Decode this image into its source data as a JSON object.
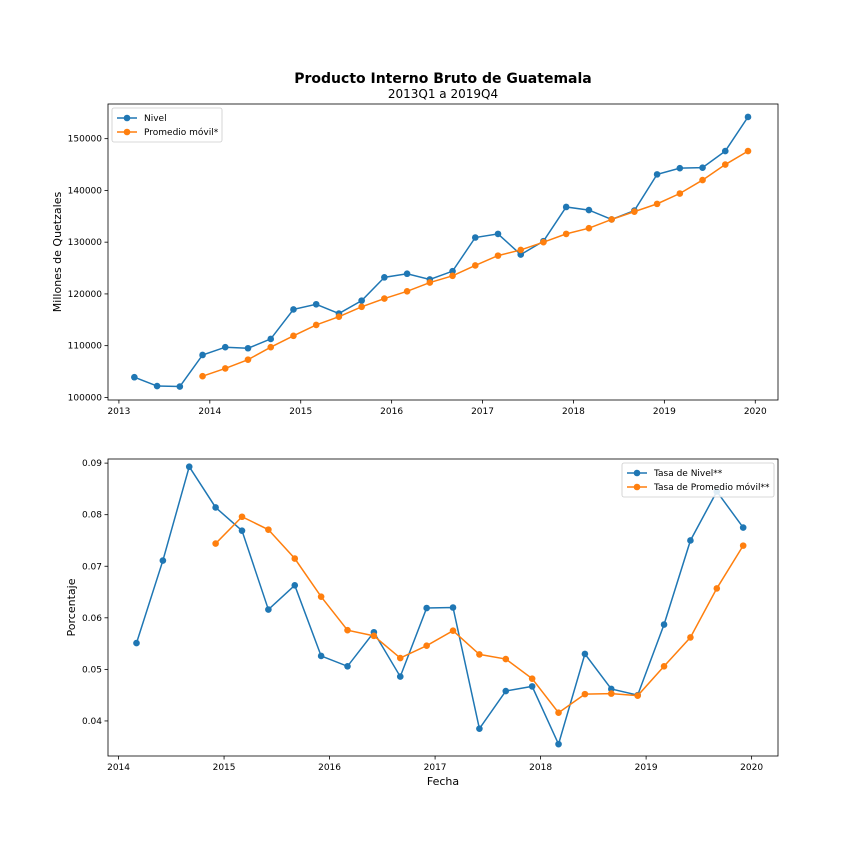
{
  "figure": {
    "title": "Producto Interno Bruto de Guatemala",
    "subtitle": "2013Q1 a 2019Q4"
  },
  "colors": {
    "nivel": "#1f77b4",
    "promedio": "#ff7f0e"
  },
  "chart_data": [
    {
      "type": "line",
      "xlabel": "",
      "ylabel": "Millones de Quetzales",
      "xlim": [
        2012.88,
        2020.25
      ],
      "ylim": [
        99500,
        156700
      ],
      "xticks": [
        2013,
        2014,
        2015,
        2016,
        2017,
        2018,
        2019,
        2020
      ],
      "yticks": [
        100000,
        110000,
        120000,
        130000,
        140000,
        150000
      ],
      "legend_position": "upper left",
      "x": [
        2013.17,
        2013.42,
        2013.67,
        2013.92,
        2014.17,
        2014.42,
        2014.67,
        2014.92,
        2015.17,
        2015.42,
        2015.67,
        2015.92,
        2016.17,
        2016.42,
        2016.67,
        2016.92,
        2017.17,
        2017.42,
        2017.67,
        2017.92,
        2018.17,
        2018.42,
        2018.67,
        2018.92,
        2019.17,
        2019.42,
        2019.67,
        2019.92
      ],
      "series": [
        {
          "name": "Nivel",
          "color": "#1f77b4",
          "values": [
            103900,
            102200,
            102100,
            108200,
            109700,
            109500,
            111300,
            117000,
            118000,
            116200,
            118700,
            123200,
            123900,
            122800,
            124400,
            130900,
            131600,
            127600,
            130200,
            136800,
            136200,
            134400,
            136100,
            143100,
            144300,
            144400,
            147600,
            154200
          ]
        },
        {
          "name": "Promedio móvil*",
          "color": "#ff7f0e",
          "values": [
            null,
            null,
            null,
            104100,
            105600,
            107300,
            109700,
            111900,
            114000,
            115600,
            117500,
            119100,
            120500,
            122200,
            123500,
            125500,
            127400,
            128500,
            130000,
            131600,
            132700,
            134400,
            135900,
            137400,
            139400,
            142000,
            145000,
            147600
          ]
        }
      ]
    },
    {
      "type": "line",
      "xlabel": "Fecha",
      "ylabel": "Porcentaje",
      "xlim": [
        2013.9,
        2020.25
      ],
      "ylim": [
        0.0332,
        0.0908
      ],
      "xticks": [
        2014,
        2015,
        2016,
        2017,
        2018,
        2019,
        2020
      ],
      "yticks": [
        0.04,
        0.05,
        0.06,
        0.07,
        0.08,
        0.09
      ],
      "legend_position": "upper right",
      "x": [
        2014.17,
        2014.42,
        2014.67,
        2014.92,
        2015.17,
        2015.42,
        2015.67,
        2015.92,
        2016.17,
        2016.42,
        2016.67,
        2016.92,
        2017.17,
        2017.42,
        2017.67,
        2017.92,
        2018.17,
        2018.42,
        2018.67,
        2018.92,
        2019.17,
        2019.42,
        2019.67,
        2019.92
      ],
      "series": [
        {
          "name": "Tasa de Nivel**",
          "color": "#1f77b4",
          "values": [
            0.0551,
            0.0711,
            0.0893,
            0.0814,
            0.0769,
            0.0616,
            0.0663,
            0.0526,
            0.0506,
            0.0572,
            0.0486,
            0.0619,
            0.062,
            0.0385,
            0.0458,
            0.0467,
            0.0355,
            0.053,
            0.0462,
            0.045,
            0.0587,
            0.075,
            0.0845,
            0.0775
          ]
        },
        {
          "name": "Tasa de Promedio móvil**",
          "color": "#ff7f0e",
          "values": [
            null,
            null,
            null,
            0.0744,
            0.0796,
            0.0771,
            0.0715,
            0.0641,
            0.0576,
            0.0565,
            0.0522,
            0.0546,
            0.0575,
            0.0529,
            0.052,
            0.0482,
            0.0416,
            0.0452,
            0.0453,
            0.0449,
            0.0506,
            0.0562,
            0.0657,
            0.074
          ]
        }
      ]
    }
  ]
}
